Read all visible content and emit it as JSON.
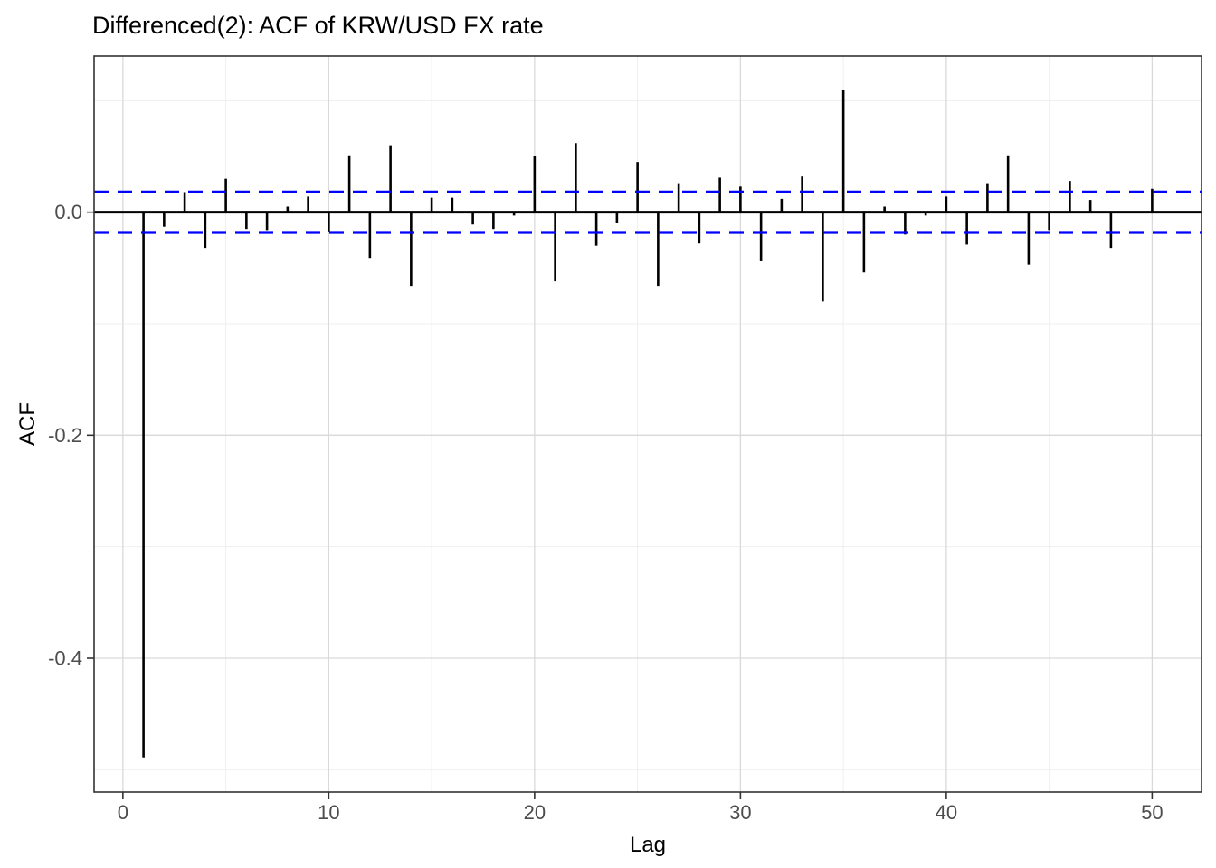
{
  "chart_data": {
    "type": "bar",
    "subtype": "acf-lollipop",
    "title": "Differenced(2): ACF of KRW/USD FX rate",
    "xlabel": "Lag",
    "ylabel": "ACF",
    "x": [
      1,
      2,
      3,
      4,
      5,
      6,
      7,
      8,
      9,
      10,
      11,
      12,
      13,
      14,
      15,
      16,
      17,
      18,
      19,
      20,
      21,
      22,
      23,
      24,
      25,
      26,
      27,
      28,
      29,
      30,
      31,
      32,
      33,
      34,
      35,
      36,
      37,
      38,
      39,
      40,
      41,
      42,
      43,
      44,
      45,
      46,
      47,
      48,
      49,
      50
    ],
    "values": [
      -0.489,
      -0.013,
      0.018,
      -0.032,
      0.03,
      -0.015,
      -0.016,
      0.005,
      0.014,
      -0.018,
      0.051,
      -0.041,
      0.06,
      -0.066,
      0.013,
      0.013,
      -0.011,
      -0.015,
      -0.003,
      0.05,
      -0.062,
      0.062,
      -0.03,
      -0.01,
      0.045,
      -0.066,
      0.026,
      -0.028,
      0.031,
      0.023,
      -0.044,
      0.012,
      0.032,
      -0.08,
      0.11,
      -0.054,
      0.005,
      -0.02,
      -0.003,
      0.014,
      -0.029,
      0.026,
      0.051,
      -0.047,
      -0.016,
      0.028,
      0.011,
      -0.032,
      -0.001,
      0.021
    ],
    "zero_line": 0,
    "significance_bounds": {
      "upper": 0.0185,
      "lower": -0.0185,
      "line_style": "dashed"
    },
    "xlim": [
      -1.4,
      52.4
    ],
    "ylim": [
      -0.52,
      0.14
    ],
    "x_ticks": [
      0,
      10,
      20,
      30,
      40,
      50
    ],
    "x_tick_labels": [
      "0",
      "10",
      "20",
      "30",
      "40",
      "50"
    ],
    "y_ticks": [
      0,
      -0.2,
      -0.4
    ],
    "y_tick_labels": [
      "0.0",
      "-0.2",
      "-0.4"
    ],
    "x_minor_gridlines": [
      5,
      15,
      25,
      35,
      45
    ],
    "y_minor_gridlines": [
      0.1,
      -0.1,
      -0.3,
      -0.5
    ],
    "grid": "major+minor",
    "legend": "none",
    "colors": {
      "bar": "#000000",
      "zero_line": "#000000",
      "significance": "#0000FF",
      "grid_major": "#D9D9D9",
      "grid_minor": "#EFEFEF",
      "panel_border": "#333333",
      "tick_mark": "#333333",
      "tick_label": "#4D4D4D",
      "axis_title": "#000000",
      "title": "#000000",
      "background": "#FFFFFF"
    }
  }
}
